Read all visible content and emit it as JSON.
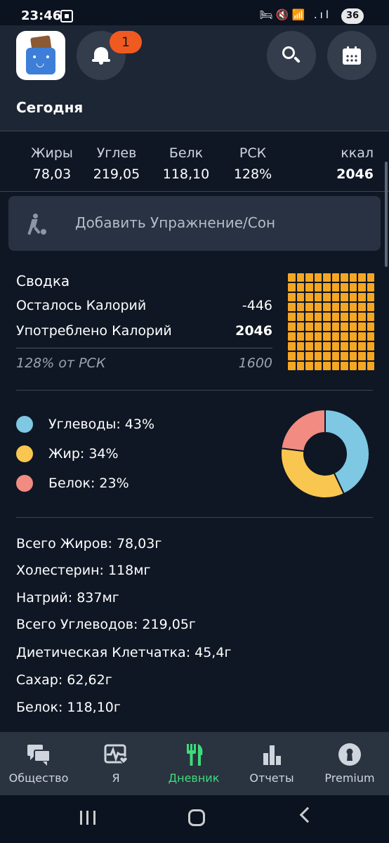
{
  "status_bar": {
    "time": "23:46",
    "icons": "🛏🔇📶 .ıl",
    "battery": "36"
  },
  "header": {
    "notification_count": "1",
    "title": "Сегодня"
  },
  "macros": [
    {
      "label": "Жиры",
      "value": "78,03"
    },
    {
      "label": "Углев",
      "value": "219,05"
    },
    {
      "label": "Белк",
      "value": "118,10"
    },
    {
      "label": "РСК",
      "value": "128%"
    },
    {
      "label": "ккал",
      "value": "2046"
    }
  ],
  "add_exercise": {
    "label": "Добавить Упражнение/Сон"
  },
  "summary": {
    "title": "Сводка",
    "remaining_label": "Осталось Калорий",
    "remaining_value": "-446",
    "consumed_label": "Употреблено Калорий",
    "consumed_value": "2046",
    "rsk_label": "128% от РСК",
    "rsk_value": "1600",
    "waffle_fill_percent": 100,
    "waffle_color": "#f5a623"
  },
  "chart_data": {
    "type": "pie",
    "categories": [
      "Углеводы",
      "Жир",
      "Белок"
    ],
    "values": [
      43,
      34,
      23
    ],
    "colors": [
      "#7ec8e3",
      "#f9c74f",
      "#f28b82"
    ],
    "labels": [
      "Углеводы: 43%",
      "Жир: 34%",
      "Белок: 23%"
    ]
  },
  "nutrients": [
    "Всего Жиров: 78,03г",
    "Холестерин: 118мг",
    "Натрий: 837мг",
    "Всего Углеводов: 219,05г",
    "Диетическая Клетчатка: 45,4г",
    "Сахар: 62,62г",
    "Белок: 118,10г"
  ],
  "bottom_nav": [
    {
      "label": "Общество",
      "icon": "chat-icon",
      "active": false
    },
    {
      "label": "Я",
      "icon": "heart-pulse-icon",
      "active": false
    },
    {
      "label": "Дневник",
      "icon": "fork-knife-icon",
      "active": true
    },
    {
      "label": "Отчеты",
      "icon": "bar-chart-icon",
      "active": false
    },
    {
      "label": "Premium",
      "icon": "keyhole-icon",
      "active": false
    }
  ],
  "colors": {
    "accent_active": "#3ddc7a",
    "badge": "#f05a20",
    "background": "#0f1724"
  }
}
